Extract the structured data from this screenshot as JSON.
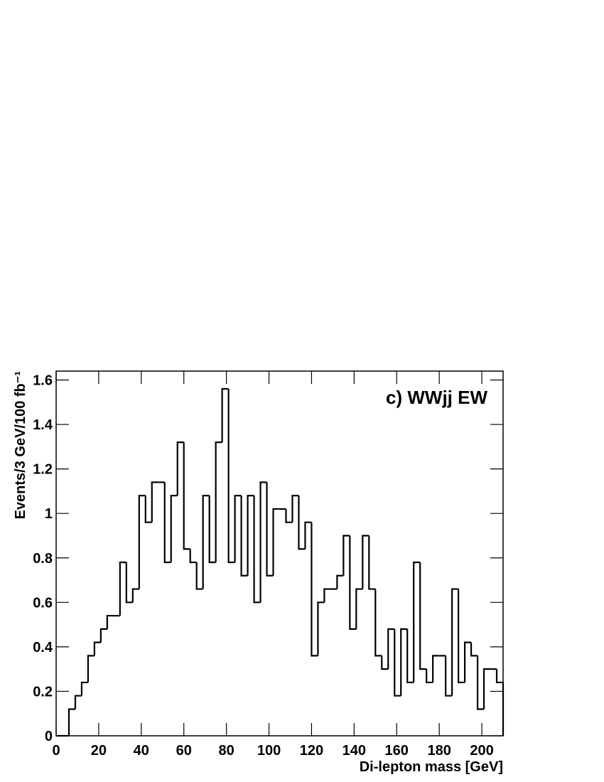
{
  "chart_data": {
    "type": "histogram",
    "annotation": "c) WWjj EW",
    "xlabel": "Di-lepton mass [GeV]",
    "ylabel": "Events/3 GeV/100 fb⁻¹",
    "bins": [
      0,
      3,
      6,
      9,
      12,
      15,
      18,
      21,
      24,
      27,
      30,
      33,
      36,
      39,
      42,
      45,
      48,
      51,
      54,
      57,
      60,
      63,
      66,
      69,
      72,
      75,
      78,
      81,
      84,
      87,
      90,
      93,
      96,
      99,
      102,
      105,
      108,
      111,
      114,
      117,
      120,
      123,
      126,
      129,
      132,
      135,
      138,
      141,
      144,
      147,
      150,
      153,
      156,
      159,
      162,
      165,
      168,
      171,
      174,
      177,
      180,
      183,
      186,
      189,
      192,
      195,
      198,
      201,
      204,
      207,
      210
    ],
    "values": [
      0,
      0,
      0.12,
      0.18,
      0.24,
      0.36,
      0.42,
      0.48,
      0.54,
      0.54,
      0.78,
      0.6,
      0.66,
      1.08,
      0.96,
      1.14,
      1.14,
      0.78,
      1.08,
      1.32,
      0.84,
      0.78,
      0.66,
      1.08,
      0.78,
      1.32,
      1.56,
      0.78,
      1.08,
      0.72,
      1.08,
      0.6,
      1.14,
      0.72,
      1.02,
      1.02,
      0.96,
      1.08,
      0.84,
      0.96,
      0.36,
      0.6,
      0.66,
      0.66,
      0.72,
      0.9,
      0.48,
      0.66,
      0.9,
      0.66,
      0.36,
      0.3,
      0.48,
      0.18,
      0.48,
      0.24,
      0.78,
      0.3,
      0.24,
      0.36,
      0.36,
      0.18,
      0.66,
      0.24,
      0.42,
      0.36,
      0.12,
      0.3,
      0.3,
      0.24
    ],
    "color": "#000000",
    "xlim": [
      0,
      210
    ],
    "xticks": [
      0,
      20,
      40,
      60,
      80,
      100,
      120,
      140,
      160,
      180,
      200
    ],
    "ylim": [
      0,
      1.64
    ],
    "yticks": [
      0,
      0.2,
      0.4,
      0.6,
      0.8,
      1,
      1.2,
      1.4,
      1.6
    ]
  }
}
